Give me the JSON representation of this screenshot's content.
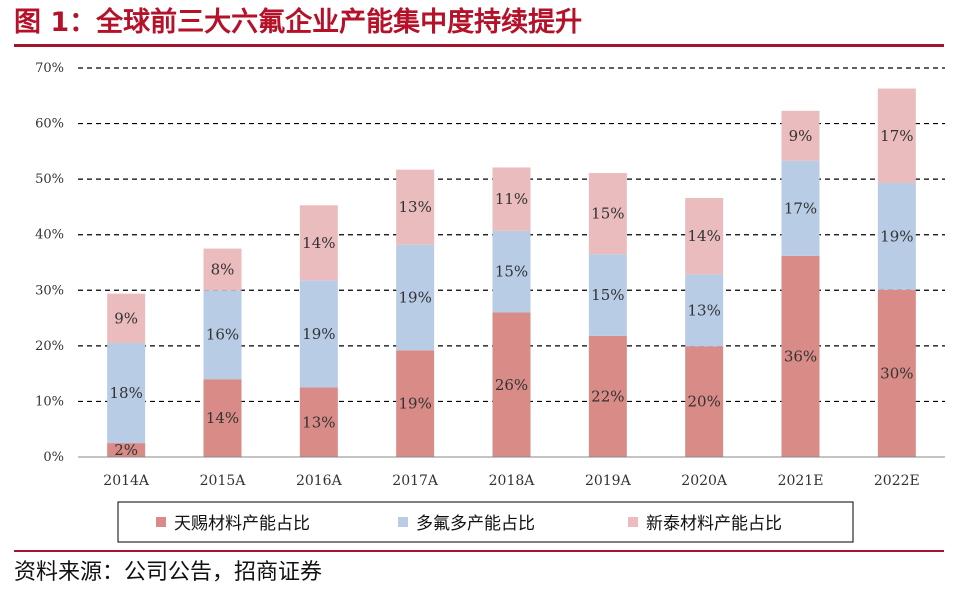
{
  "title": "图 1：全球前三大六氟企业产能集中度持续提升",
  "source": "资料来源：公司公告，招商证券",
  "chart_data": {
    "type": "bar",
    "stacked": true,
    "categories": [
      "2014A",
      "2015A",
      "2016A",
      "2017A",
      "2018A",
      "2019A",
      "2020A",
      "2021E",
      "2022E"
    ],
    "series": [
      {
        "name": "天赐材料产能占比",
        "color": "#d98b87",
        "values": [
          2.5,
          14,
          12.5,
          19.2,
          26,
          21.8,
          19.9,
          36.2,
          30.1
        ],
        "labels": [
          "2%",
          "14%",
          "13%",
          "19%",
          "26%",
          "22%",
          "20%",
          "36%",
          "30%"
        ]
      },
      {
        "name": "多氟多产能占比",
        "color": "#b8cce6",
        "values": [
          18,
          16,
          19.3,
          19,
          14.7,
          14.7,
          13,
          17.1,
          19.2
        ],
        "labels": [
          "18%",
          "16%",
          "19%",
          "19%",
          "15%",
          "15%",
          "13%",
          "17%",
          "19%"
        ]
      },
      {
        "name": "新泰材料产能占比",
        "color": "#eabcbd",
        "values": [
          8.9,
          7.5,
          13.5,
          13.5,
          11.4,
          14.6,
          13.7,
          9,
          17
        ],
        "labels": [
          "9%",
          "8%",
          "14%",
          "13%",
          "11%",
          "15%",
          "14%",
          "9%",
          "17%"
        ]
      }
    ],
    "yticks": [
      "0%",
      "10%",
      "20%",
      "30%",
      "40%",
      "50%",
      "60%",
      "70%"
    ],
    "ylim": [
      0,
      70
    ],
    "grid": true,
    "legend_position": "bottom"
  }
}
